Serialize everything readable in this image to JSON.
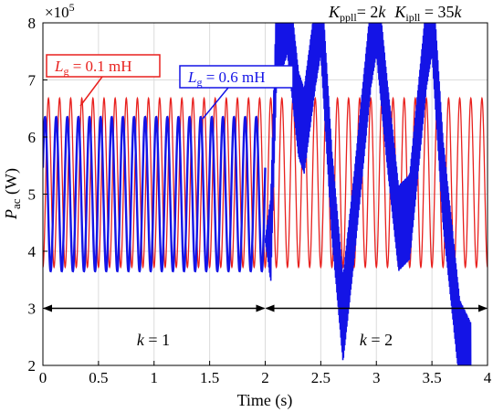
{
  "chart_data": {
    "type": "line",
    "xlabel": "Time (s)",
    "ylabel": {
      "base": "P",
      "sub": "ac",
      "unit": " (W)"
    },
    "xlim": [
      0,
      4
    ],
    "ylim": [
      2,
      8
    ],
    "x_ticks": [
      "0",
      "0.5",
      "1",
      "1.5",
      "2",
      "2.5",
      "3",
      "3.5",
      "4"
    ],
    "y_ticks": [
      "2",
      "3",
      "4",
      "5",
      "6",
      "7",
      "8"
    ],
    "x_tick_values": [
      0,
      0.5,
      1,
      1.5,
      2,
      2.5,
      3,
      3.5,
      4
    ],
    "y_tick_values": [
      2,
      3,
      4,
      5,
      6,
      7,
      8
    ],
    "y_multiplier": {
      "base": "×10",
      "exp": "5"
    },
    "grid": true,
    "params": {
      "kpp_sym": "K",
      "kpp_sub": "ppll",
      "kpp_val": "= 2",
      "kpp_k": "k",
      "kip_sym": "K",
      "kip_sub": "ipll",
      "kip_val": " = 35",
      "kip_k": "k"
    },
    "series": [
      {
        "label_sym": "L",
        "label_sub": "g",
        "label_val": " = 0.1 mH",
        "color": "#e8211e",
        "segments": [
          {
            "x0": 0,
            "x1": 4,
            "center": 5.2,
            "amplitude": 1.48,
            "period": 0.1
          }
        ]
      },
      {
        "label_sym": "L",
        "label_sub": "g",
        "label_val": " = 0.6 mH",
        "color": "#1414e6",
        "segments": [
          {
            "x0": 0,
            "x1": 2.0,
            "center": 5.0,
            "amplitude": 1.35,
            "period": 0.1
          },
          {
            "x0": 2.0,
            "x1": 2.05,
            "center": 5.0,
            "amplitude": 1.35,
            "period": 0.1
          }
        ],
        "envelope_after_2s": {
          "note_points": [
            [
              2.05,
              4.2
            ],
            [
              2.1,
              7.6
            ],
            [
              2.2,
              8.2
            ],
            [
              2.3,
              6.4
            ],
            [
              2.35,
              6.1
            ],
            [
              2.45,
              7.6
            ],
            [
              2.5,
              8.2
            ],
            [
              2.6,
              5.0
            ],
            [
              2.7,
              2.8
            ],
            [
              2.8,
              4.6
            ],
            [
              2.95,
              7.6
            ],
            [
              3.0,
              8.2
            ],
            [
              3.1,
              6.2
            ],
            [
              3.2,
              4.4
            ],
            [
              3.3,
              4.6
            ],
            [
              3.45,
              7.6
            ],
            [
              3.5,
              8.2
            ],
            [
              3.6,
              5.2
            ],
            [
              3.75,
              2.4
            ],
            [
              3.85,
              2.0
            ]
          ],
          "ripple": 0.75
        }
      }
    ],
    "annotations": {
      "k1": {
        "sym": "k",
        "val": " = 1",
        "x_start": 0,
        "x_end": 2,
        "y": 3
      },
      "k2": {
        "sym": "k",
        "val": " = 2",
        "x_start": 2,
        "x_end": 4,
        "y": 3
      }
    }
  }
}
